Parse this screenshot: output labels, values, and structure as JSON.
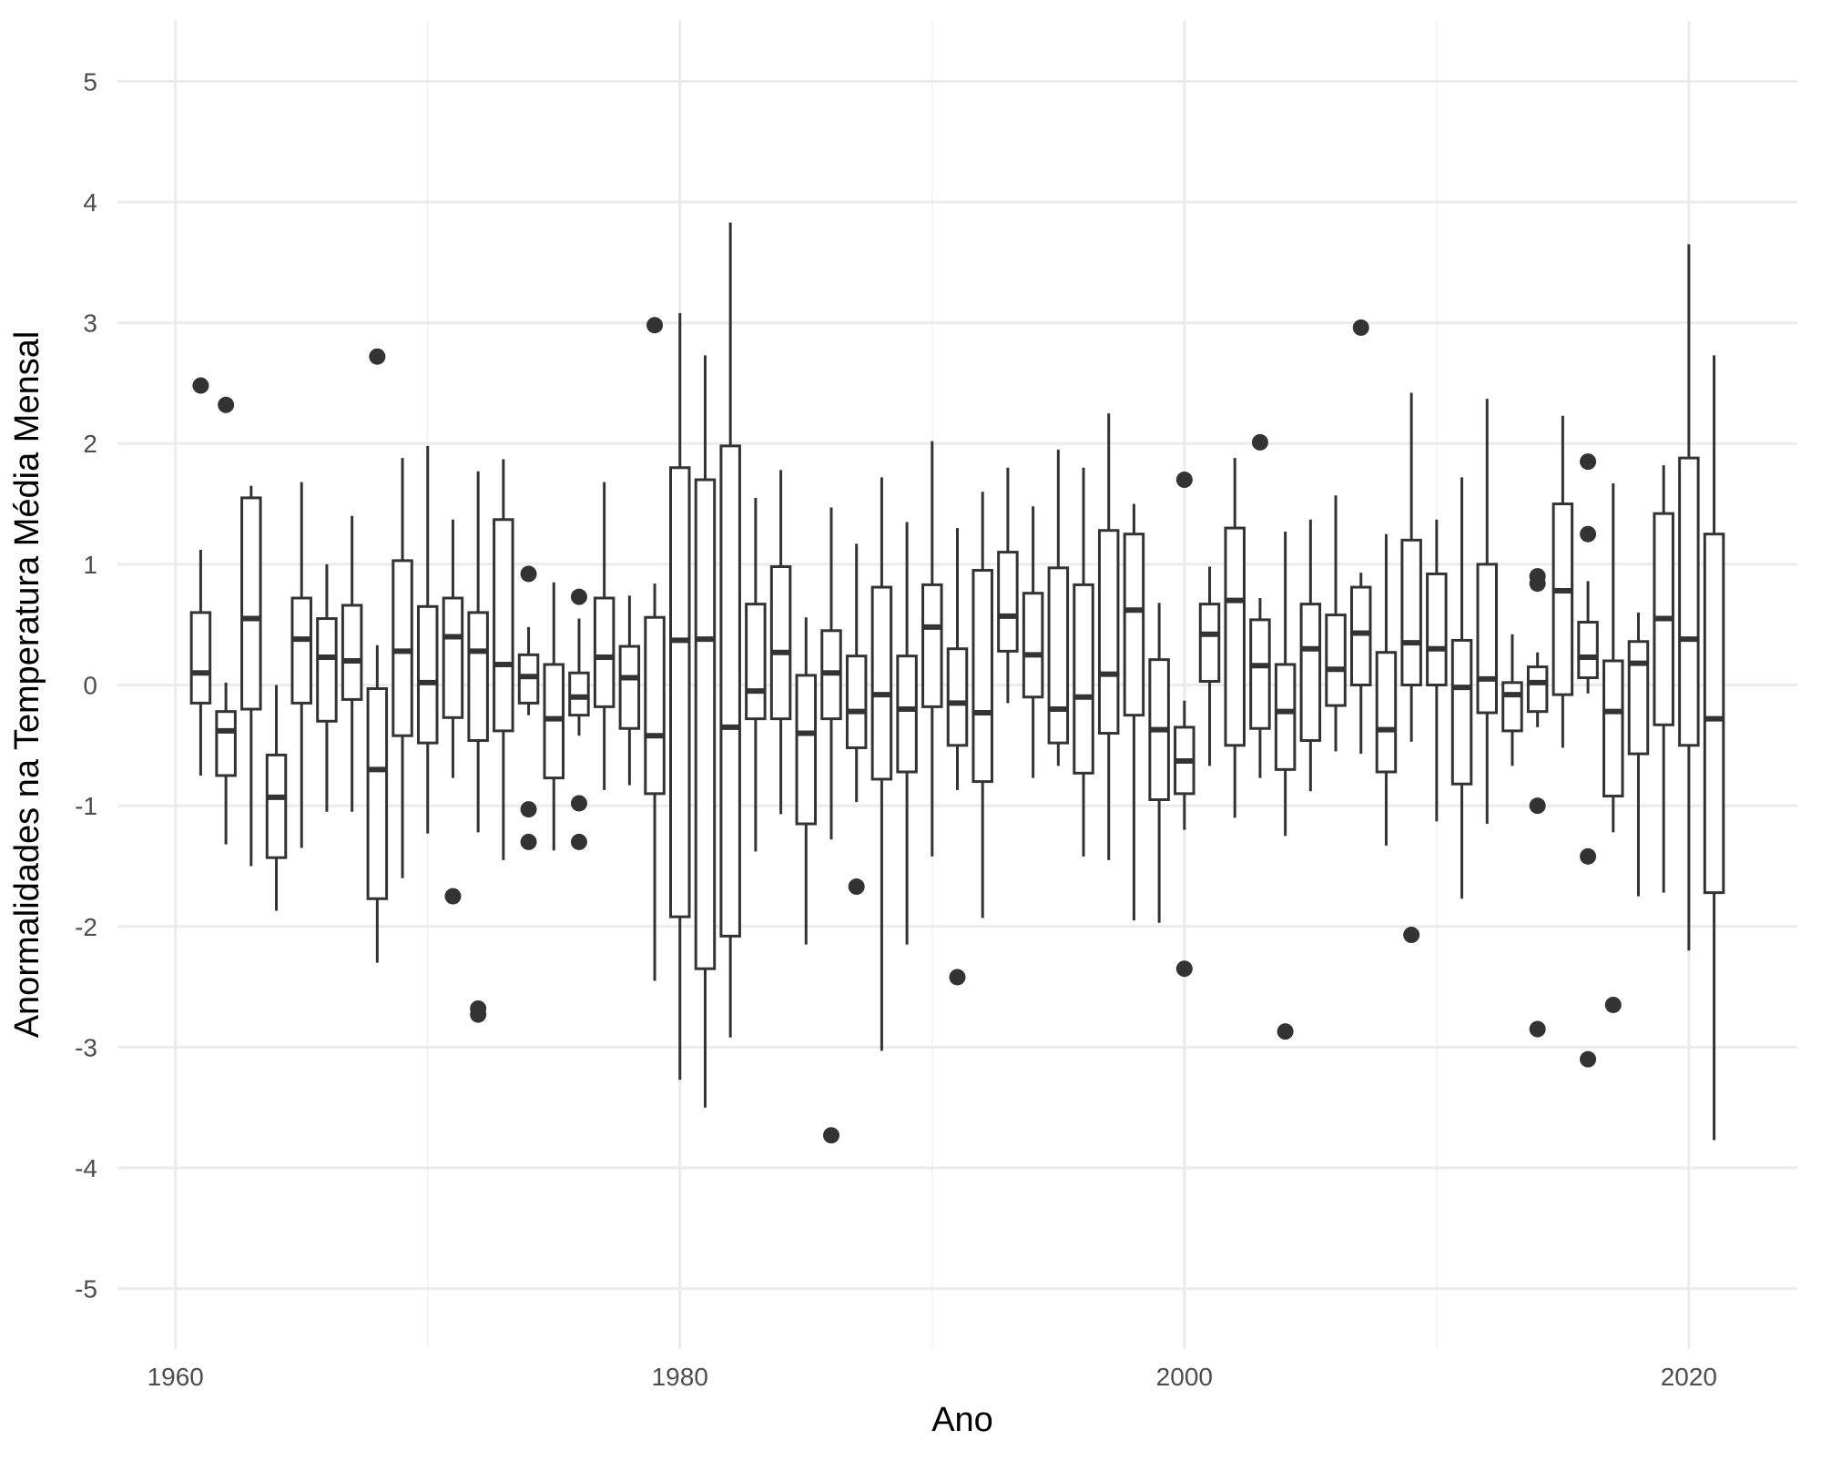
{
  "chart_data": {
    "type": "boxplot",
    "title": "",
    "xlabel": "Ano",
    "ylabel": "Anormalidades na Temperatura Média Mensal",
    "xlim": [
      1957.7,
      2024.3
    ],
    "ylim": [
      -5.5,
      5.5
    ],
    "x_ticks": [
      "1960",
      "1980",
      "2000",
      "2020"
    ],
    "y_ticks": [
      "-5",
      "-4",
      "-3",
      "-2",
      "-1",
      "0",
      "1",
      "2",
      "3",
      "4",
      "5"
    ],
    "grid": true,
    "legend": "none",
    "colors": {
      "box_stroke": "#333333",
      "grid_major": "#ebebeb",
      "grid_minor": "#f5f5f5",
      "background": "#ffffff"
    },
    "boxes": [
      {
        "year": 1961,
        "low": -0.75,
        "q1": -0.15,
        "median": 0.1,
        "q3": 0.6,
        "high": 1.12,
        "outliers": [
          2.48
        ]
      },
      {
        "year": 1962,
        "low": -1.32,
        "q1": -0.75,
        "median": -0.38,
        "q3": -0.22,
        "high": 0.02,
        "outliers": [
          2.32
        ]
      },
      {
        "year": 1963,
        "low": -1.5,
        "q1": -0.2,
        "median": 0.55,
        "q3": 1.55,
        "high": 1.65,
        "outliers": []
      },
      {
        "year": 1964,
        "low": -1.87,
        "q1": -1.43,
        "median": -0.93,
        "q3": -0.58,
        "high": 0.0,
        "outliers": []
      },
      {
        "year": 1965,
        "low": -1.35,
        "q1": -0.15,
        "median": 0.38,
        "q3": 0.72,
        "high": 1.68,
        "outliers": []
      },
      {
        "year": 1966,
        "low": -1.05,
        "q1": -0.3,
        "median": 0.23,
        "q3": 0.55,
        "high": 1.0,
        "outliers": []
      },
      {
        "year": 1967,
        "low": -1.05,
        "q1": -0.12,
        "median": 0.2,
        "q3": 0.66,
        "high": 1.4,
        "outliers": []
      },
      {
        "year": 1968,
        "low": -2.3,
        "q1": -1.77,
        "median": -0.7,
        "q3": -0.03,
        "high": 0.33,
        "outliers": [
          2.72
        ]
      },
      {
        "year": 1969,
        "low": -1.6,
        "q1": -0.42,
        "median": 0.28,
        "q3": 1.03,
        "high": 1.88,
        "outliers": []
      },
      {
        "year": 1970,
        "low": -1.23,
        "q1": -0.48,
        "median": 0.02,
        "q3": 0.65,
        "high": 1.98,
        "outliers": []
      },
      {
        "year": 1971,
        "low": -0.77,
        "q1": -0.27,
        "median": 0.4,
        "q3": 0.72,
        "high": 1.37,
        "outliers": [
          -1.75
        ]
      },
      {
        "year": 1972,
        "low": -1.22,
        "q1": -0.46,
        "median": 0.28,
        "q3": 0.6,
        "high": 1.77,
        "outliers": [
          -2.68,
          -2.73
        ]
      },
      {
        "year": 1973,
        "low": -1.45,
        "q1": -0.38,
        "median": 0.17,
        "q3": 1.37,
        "high": 1.87,
        "outliers": []
      },
      {
        "year": 1974,
        "low": -0.25,
        "q1": -0.15,
        "median": 0.07,
        "q3": 0.25,
        "high": 0.48,
        "outliers": [
          0.92,
          -1.03,
          -1.3
        ]
      },
      {
        "year": 1975,
        "low": -1.37,
        "q1": -0.77,
        "median": -0.28,
        "q3": 0.17,
        "high": 0.85,
        "outliers": []
      },
      {
        "year": 1976,
        "low": -0.42,
        "q1": -0.25,
        "median": -0.1,
        "q3": 0.1,
        "high": 0.55,
        "outliers": [
          0.73,
          -0.98,
          -1.3
        ]
      },
      {
        "year": 1977,
        "low": -0.87,
        "q1": -0.18,
        "median": 0.23,
        "q3": 0.72,
        "high": 1.68,
        "outliers": []
      },
      {
        "year": 1978,
        "low": -0.83,
        "q1": -0.36,
        "median": 0.06,
        "q3": 0.32,
        "high": 0.74,
        "outliers": []
      },
      {
        "year": 1979,
        "low": -2.45,
        "q1": -0.9,
        "median": -0.42,
        "q3": 0.56,
        "high": 0.84,
        "outliers": [
          2.98
        ]
      },
      {
        "year": 1980,
        "low": -3.27,
        "q1": -1.92,
        "median": 0.37,
        "q3": 1.8,
        "high": 3.08,
        "outliers": []
      },
      {
        "year": 1981,
        "low": -3.5,
        "q1": -2.35,
        "median": 0.38,
        "q3": 1.7,
        "high": 2.73,
        "outliers": []
      },
      {
        "year": 1982,
        "low": -2.92,
        "q1": -2.08,
        "median": -0.35,
        "q3": 1.98,
        "high": 3.83,
        "outliers": []
      },
      {
        "year": 1983,
        "low": -1.38,
        "q1": -0.28,
        "median": -0.05,
        "q3": 0.67,
        "high": 1.55,
        "outliers": []
      },
      {
        "year": 1984,
        "low": -1.07,
        "q1": -0.28,
        "median": 0.27,
        "q3": 0.98,
        "high": 1.78,
        "outliers": []
      },
      {
        "year": 1985,
        "low": -2.15,
        "q1": -1.15,
        "median": -0.4,
        "q3": 0.08,
        "high": 0.56,
        "outliers": []
      },
      {
        "year": 1986,
        "low": -1.28,
        "q1": -0.28,
        "median": 0.1,
        "q3": 0.45,
        "high": 1.47,
        "outliers": [
          -3.73
        ]
      },
      {
        "year": 1987,
        "low": -0.97,
        "q1": -0.52,
        "median": -0.22,
        "q3": 0.24,
        "high": 1.17,
        "outliers": [
          -1.67
        ]
      },
      {
        "year": 1988,
        "low": -3.03,
        "q1": -0.78,
        "median": -0.08,
        "q3": 0.81,
        "high": 1.72,
        "outliers": []
      },
      {
        "year": 1989,
        "low": -2.15,
        "q1": -0.72,
        "median": -0.2,
        "q3": 0.24,
        "high": 1.35,
        "outliers": []
      },
      {
        "year": 1990,
        "low": -1.42,
        "q1": -0.18,
        "median": 0.48,
        "q3": 0.83,
        "high": 2.02,
        "outliers": []
      },
      {
        "year": 1991,
        "low": -0.87,
        "q1": -0.5,
        "median": -0.15,
        "q3": 0.3,
        "high": 1.3,
        "outliers": [
          -2.42
        ]
      },
      {
        "year": 1992,
        "low": -1.93,
        "q1": -0.8,
        "median": -0.23,
        "q3": 0.95,
        "high": 1.6,
        "outliers": []
      },
      {
        "year": 1993,
        "low": -0.15,
        "q1": 0.28,
        "median": 0.57,
        "q3": 1.1,
        "high": 1.8,
        "outliers": []
      },
      {
        "year": 1994,
        "low": -0.77,
        "q1": -0.1,
        "median": 0.25,
        "q3": 0.76,
        "high": 1.48,
        "outliers": []
      },
      {
        "year": 1995,
        "low": -0.67,
        "q1": -0.48,
        "median": -0.2,
        "q3": 0.97,
        "high": 1.95,
        "outliers": []
      },
      {
        "year": 1996,
        "low": -1.42,
        "q1": -0.73,
        "median": -0.1,
        "q3": 0.83,
        "high": 1.8,
        "outliers": []
      },
      {
        "year": 1997,
        "low": -1.45,
        "q1": -0.4,
        "median": 0.09,
        "q3": 1.28,
        "high": 2.25,
        "outliers": []
      },
      {
        "year": 1998,
        "low": -1.95,
        "q1": -0.25,
        "median": 0.62,
        "q3": 1.25,
        "high": 1.5,
        "outliers": []
      },
      {
        "year": 1999,
        "low": -1.97,
        "q1": -0.95,
        "median": -0.37,
        "q3": 0.21,
        "high": 0.68,
        "outliers": []
      },
      {
        "year": 2000,
        "low": -1.2,
        "q1": -0.9,
        "median": -0.63,
        "q3": -0.35,
        "high": -0.13,
        "outliers": [
          1.7,
          -2.35
        ]
      },
      {
        "year": 2001,
        "low": -0.67,
        "q1": 0.03,
        "median": 0.42,
        "q3": 0.67,
        "high": 0.98,
        "outliers": []
      },
      {
        "year": 2002,
        "low": -1.1,
        "q1": -0.5,
        "median": 0.7,
        "q3": 1.3,
        "high": 1.88,
        "outliers": []
      },
      {
        "year": 2003,
        "low": -0.77,
        "q1": -0.36,
        "median": 0.16,
        "q3": 0.54,
        "high": 0.72,
        "outliers": [
          2.01
        ]
      },
      {
        "year": 2004,
        "low": -1.25,
        "q1": -0.7,
        "median": -0.22,
        "q3": 0.17,
        "high": 1.27,
        "outliers": [
          -2.87
        ]
      },
      {
        "year": 2005,
        "low": -0.88,
        "q1": -0.46,
        "median": 0.3,
        "q3": 0.67,
        "high": 1.37,
        "outliers": []
      },
      {
        "year": 2006,
        "low": -0.55,
        "q1": -0.17,
        "median": 0.13,
        "q3": 0.58,
        "high": 1.57,
        "outliers": []
      },
      {
        "year": 2007,
        "low": -0.57,
        "q1": 0.0,
        "median": 0.43,
        "q3": 0.81,
        "high": 0.93,
        "outliers": [
          2.96
        ]
      },
      {
        "year": 2008,
        "low": -1.33,
        "q1": -0.72,
        "median": -0.37,
        "q3": 0.27,
        "high": 1.25,
        "outliers": []
      },
      {
        "year": 2009,
        "low": -0.47,
        "q1": 0.0,
        "median": 0.35,
        "q3": 1.2,
        "high": 2.42,
        "outliers": [
          -2.07
        ]
      },
      {
        "year": 2010,
        "low": -1.13,
        "q1": 0.0,
        "median": 0.3,
        "q3": 0.92,
        "high": 1.37,
        "outliers": []
      },
      {
        "year": 2011,
        "low": -1.77,
        "q1": -0.82,
        "median": -0.02,
        "q3": 0.37,
        "high": 1.72,
        "outliers": []
      },
      {
        "year": 2012,
        "low": -1.15,
        "q1": -0.23,
        "median": 0.05,
        "q3": 1.0,
        "high": 2.37,
        "outliers": []
      },
      {
        "year": 2013,
        "low": -0.67,
        "q1": -0.38,
        "median": -0.08,
        "q3": 0.02,
        "high": 0.42,
        "outliers": []
      },
      {
        "year": 2014,
        "low": -0.35,
        "q1": -0.22,
        "median": 0.02,
        "q3": 0.15,
        "high": 0.27,
        "outliers": [
          0.9,
          0.84,
          -1.0,
          -2.85
        ]
      },
      {
        "year": 2015,
        "low": -0.52,
        "q1": -0.08,
        "median": 0.78,
        "q3": 1.5,
        "high": 2.23,
        "outliers": []
      },
      {
        "year": 2016,
        "low": -0.07,
        "q1": 0.06,
        "median": 0.23,
        "q3": 0.52,
        "high": 0.86,
        "outliers": [
          1.85,
          1.25,
          -1.42,
          -3.1
        ]
      },
      {
        "year": 2017,
        "low": -1.22,
        "q1": -0.92,
        "median": -0.22,
        "q3": 0.2,
        "high": 1.67,
        "outliers": [
          -2.65
        ]
      },
      {
        "year": 2018,
        "low": -1.75,
        "q1": -0.57,
        "median": 0.18,
        "q3": 0.36,
        "high": 0.6,
        "outliers": []
      },
      {
        "year": 2019,
        "low": -1.72,
        "q1": -0.33,
        "median": 0.55,
        "q3": 1.42,
        "high": 1.82,
        "outliers": []
      },
      {
        "year": 2020,
        "low": -2.2,
        "q1": -0.5,
        "median": 0.38,
        "q3": 1.88,
        "high": 3.65,
        "outliers": []
      },
      {
        "year": 2021,
        "low": -3.77,
        "q1": -1.72,
        "median": -0.28,
        "q3": 1.25,
        "high": 2.73,
        "outliers": []
      }
    ]
  }
}
